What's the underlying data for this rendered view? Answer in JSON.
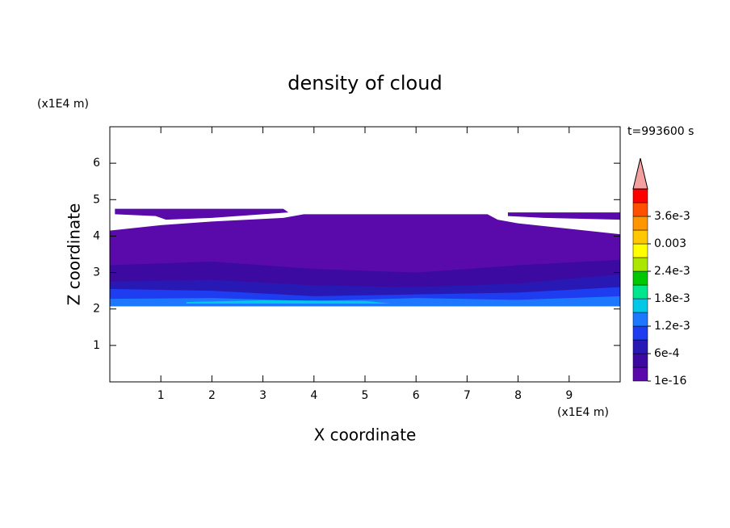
{
  "chart_data": {
    "type": "contour",
    "title": "density of cloud",
    "x_label": "X coordinate",
    "y_label": "Z coordinate",
    "x_unit": "(x1E4 m)",
    "y_unit": "(x1E4 m)",
    "annotation": "t=993600 s",
    "xlim": [
      0,
      10
    ],
    "ylim": [
      0,
      7
    ],
    "xticks": [
      1,
      2,
      3,
      4,
      5,
      6,
      7,
      8,
      9
    ],
    "yticks": [
      1,
      2,
      3,
      4,
      5,
      6
    ],
    "colorbar": {
      "levels": [
        1e-16,
        0.0003,
        0.0006,
        0.0009,
        0.0012,
        0.0015,
        0.0018,
        0.0021,
        0.0024,
        0.0027,
        0.003,
        0.0033,
        0.0036,
        0.0039,
        0.0042
      ],
      "colors": [
        "#5a0aaa",
        "#3c0aa0",
        "#2818b4",
        "#1e3cf0",
        "#1e78ff",
        "#00c8e6",
        "#00e68c",
        "#00c800",
        "#aae600",
        "#ffff00",
        "#ffc800",
        "#ff9600",
        "#ff5000",
        "#ff0000"
      ],
      "extend_color": "#f4a0a0",
      "ticks": [
        1e-16,
        {
          "value": 0.0006,
          "label": "6e-4"
        },
        {
          "value": 0.0012,
          "label": "1.2e-3"
        },
        {
          "value": 0.0018,
          "label": "1.8e-3"
        },
        {
          "value": 0.0024,
          "label": "2.4e-3"
        },
        0.003,
        {
          "value": 0.0036,
          "label": "3.6e-3"
        }
      ]
    },
    "regions": [
      {
        "level": 0,
        "x": [
          0,
          10,
          10,
          9,
          8,
          7.6,
          7.4,
          3.8,
          3.4,
          2,
          1,
          0
        ],
        "z": [
          2.08,
          2.08,
          4.05,
          4.2,
          4.35,
          4.45,
          4.6,
          4.6,
          4.5,
          4.4,
          4.3,
          4.15
        ]
      },
      {
        "level": 0,
        "x": [
          0.1,
          3.4,
          3.5,
          2,
          1.1,
          0.9,
          0.1
        ],
        "z": [
          4.75,
          4.75,
          4.65,
          4.5,
          4.45,
          4.55,
          4.6
        ]
      },
      {
        "level": 0,
        "x": [
          7.8,
          10,
          10,
          8.5,
          7.8
        ],
        "z": [
          4.65,
          4.65,
          4.45,
          4.5,
          4.55
        ]
      },
      {
        "level": 1,
        "x": [
          0,
          10,
          10,
          8,
          6,
          4,
          2,
          0
        ],
        "z": [
          2.08,
          2.08,
          3.35,
          3.2,
          3.0,
          3.1,
          3.3,
          3.2
        ]
      },
      {
        "level": 2,
        "x": [
          0,
          10,
          10,
          8,
          6,
          4,
          2,
          0
        ],
        "z": [
          2.08,
          2.08,
          2.95,
          2.7,
          2.6,
          2.65,
          2.8,
          2.75
        ]
      },
      {
        "level": 3,
        "x": [
          0,
          10,
          10,
          8,
          6,
          4,
          2,
          0
        ],
        "z": [
          2.08,
          2.08,
          2.6,
          2.45,
          2.4,
          2.35,
          2.5,
          2.55
        ]
      },
      {
        "level": 4,
        "x": [
          0,
          10,
          10,
          8,
          6,
          4,
          2,
          0
        ],
        "z": [
          2.08,
          2.08,
          2.35,
          2.25,
          2.3,
          2.22,
          2.3,
          2.28
        ]
      },
      {
        "level": 5,
        "x": [
          1.5,
          5.5,
          5,
          3,
          1.5
        ],
        "z": [
          2.15,
          2.15,
          2.22,
          2.24,
          2.19
        ]
      }
    ]
  }
}
